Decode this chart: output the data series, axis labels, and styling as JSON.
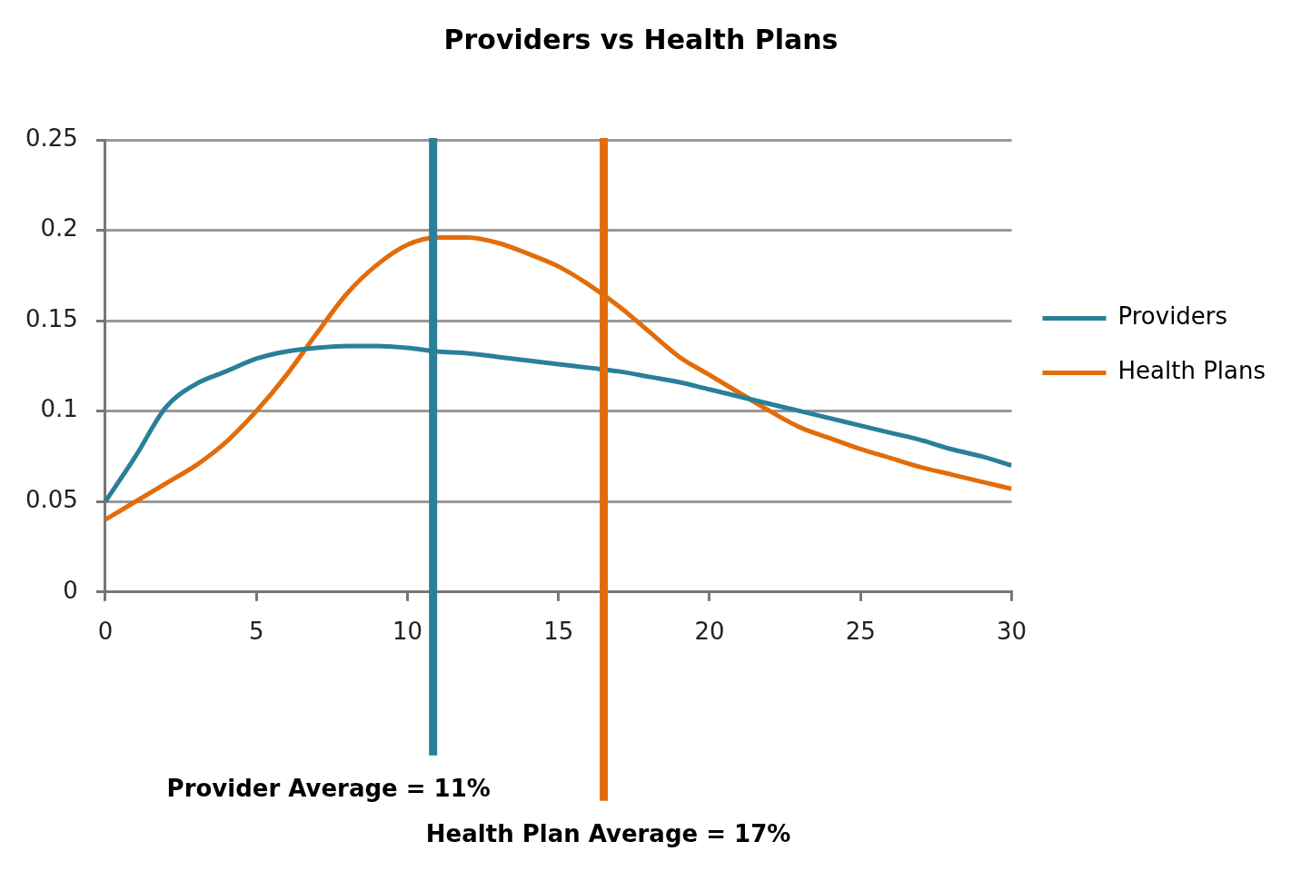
{
  "chart_data": {
    "type": "line",
    "title": "Providers vs Health Plans",
    "x": [
      0,
      1,
      2,
      3,
      4,
      5,
      6,
      7,
      8,
      9,
      10,
      11,
      12,
      13,
      14,
      15,
      16,
      17,
      18,
      19,
      20,
      21,
      22,
      23,
      24,
      25,
      26,
      27,
      28,
      29,
      30
    ],
    "series": [
      {
        "name": "Providers",
        "color": "#2a7f99",
        "values": [
          0.05,
          0.075,
          0.102,
          0.115,
          0.122,
          0.129,
          0.133,
          0.135,
          0.136,
          0.136,
          0.135,
          0.133,
          0.132,
          0.13,
          0.128,
          0.126,
          0.124,
          0.122,
          0.119,
          0.116,
          0.112,
          0.108,
          0.104,
          0.1,
          0.096,
          0.092,
          0.088,
          0.084,
          0.079,
          0.075,
          0.07
        ]
      },
      {
        "name": "Health Plans",
        "color": "#e36c0a",
        "values": [
          0.04,
          0.05,
          0.06,
          0.07,
          0.083,
          0.1,
          0.12,
          0.143,
          0.165,
          0.181,
          0.192,
          0.196,
          0.196,
          0.193,
          0.187,
          0.18,
          0.17,
          0.158,
          0.144,
          0.13,
          0.12,
          0.11,
          0.1,
          0.091,
          0.085,
          0.079,
          0.074,
          0.069,
          0.065,
          0.061,
          0.057
        ]
      }
    ],
    "xlim": [
      0,
      30
    ],
    "xticks": [
      0,
      5,
      10,
      15,
      20,
      25,
      30
    ],
    "ylim": [
      0,
      0.25
    ],
    "yticks": [
      0,
      0.05,
      0.1,
      0.15,
      0.2,
      0.25
    ],
    "grid": "y",
    "legend": "right",
    "marker": "none",
    "line_style": "solid",
    "ref_lines": [
      {
        "axis": "x",
        "value": 10.85,
        "label": "Provider Average = 11%",
        "color": "#2a7f99"
      },
      {
        "axis": "x",
        "value": 16.5,
        "label": "Health Plan Average = 17%",
        "color": "#e36c0a"
      }
    ]
  }
}
